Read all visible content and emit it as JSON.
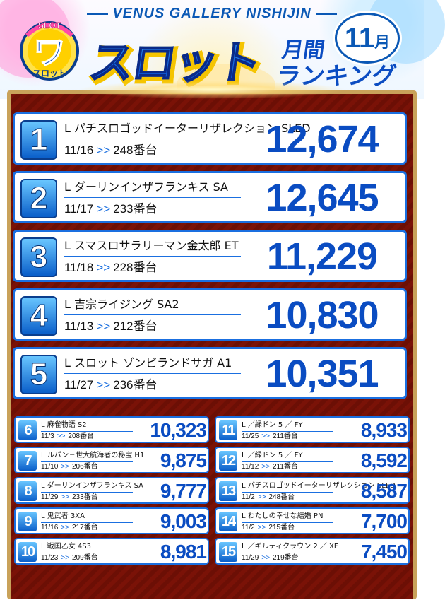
{
  "header": {
    "venue": "VENUS GALLERY NISHIJIN",
    "title": "スロット",
    "subtitle_top": "月間",
    "subtitle_bottom": "ランキング",
    "month_num": "11",
    "month_suffix": "月",
    "logo_text_top": "SLOT",
    "logo_text_main": "ワ",
    "logo_text_sub": "スロット"
  },
  "colors": {
    "accent": "#0a4cc2",
    "frame": "#7a1207",
    "gold": "#c9a25a"
  },
  "top_entries": [
    {
      "rank": "1",
      "name": "L パチスロゴッドイーターリザレクション SLED",
      "date": "11/16",
      "arrow": ">>",
      "slot": "248番台",
      "value": "12,674"
    },
    {
      "rank": "2",
      "name": "L ダーリンインザフランキス SA",
      "date": "11/17",
      "arrow": ">>",
      "slot": "233番台",
      "value": "12,645"
    },
    {
      "rank": "3",
      "name": "L スマスロサラリーマン金太郎 ET",
      "date": "11/18",
      "arrow": ">>",
      "slot": "228番台",
      "value": "11,229"
    },
    {
      "rank": "4",
      "name": "L 吉宗ライジング SA2",
      "date": "11/13",
      "arrow": ">>",
      "slot": "212番台",
      "value": "10,830"
    },
    {
      "rank": "5",
      "name": "L スロット ゾンビランドサガ A1",
      "date": "11/27",
      "arrow": ">>",
      "slot": "236番台",
      "value": "10,351"
    }
  ],
  "small_entries": [
    {
      "rank": "6",
      "name": "L 麻雀物語 S2",
      "date": "11/3",
      "arrow": ">>",
      "slot": "208番台",
      "value": "10,323"
    },
    {
      "rank": "7",
      "name": "L ルパン三世大航海者の秘宝 H1",
      "date": "11/10",
      "arrow": ">>",
      "slot": "206番台",
      "value": "9,875"
    },
    {
      "rank": "8",
      "name": "L ダーリンインザフランキス SA",
      "date": "11/29",
      "arrow": ">>",
      "slot": "233番台",
      "value": "9,777"
    },
    {
      "rank": "9",
      "name": "L 鬼武者 3XA",
      "date": "11/16",
      "arrow": ">>",
      "slot": "217番台",
      "value": "9,003"
    },
    {
      "rank": "10",
      "name": "L 戦国乙女 4S3",
      "date": "11/23",
      "arrow": ">>",
      "slot": "209番台",
      "value": "8,981"
    },
    {
      "rank": "11",
      "name": "L ／緑ドン 5 ／ FY",
      "date": "11/25",
      "arrow": ">>",
      "slot": "211番台",
      "value": "8,933"
    },
    {
      "rank": "12",
      "name": "L ／緑ドン 5 ／ FY",
      "date": "11/12",
      "arrow": ">>",
      "slot": "211番台",
      "value": "8,592"
    },
    {
      "rank": "13",
      "name": "L パチスロゴッドイーターリザレクション SLED",
      "date": "11/2",
      "arrow": ">>",
      "slot": "248番台",
      "value": "8,587"
    },
    {
      "rank": "14",
      "name": "L わたしの幸せな結婚 PN",
      "date": "11/2",
      "arrow": ">>",
      "slot": "215番台",
      "value": "7,700"
    },
    {
      "rank": "15",
      "name": "L ／ギルティクラウン 2 ／ XF",
      "date": "11/29",
      "arrow": ">>",
      "slot": "219番台",
      "value": "7,450"
    }
  ]
}
